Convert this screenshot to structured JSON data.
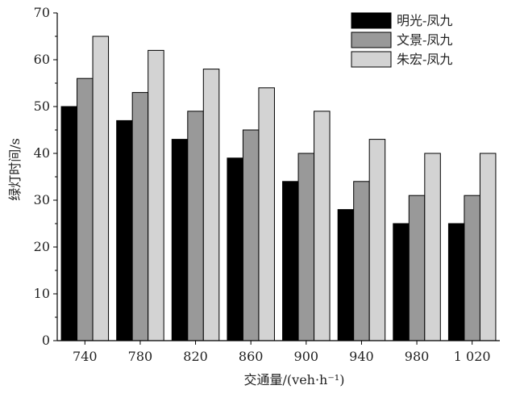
{
  "chart_data": {
    "type": "bar",
    "xlabel": "交通量/(veh·h⁻¹)",
    "ylabel": "绿灯时间/s",
    "ylim": [
      0,
      70
    ],
    "yticks": [
      0,
      10,
      20,
      30,
      40,
      50,
      60,
      70
    ],
    "categories": [
      "740",
      "780",
      "820",
      "860",
      "900",
      "940",
      "980",
      "1 020"
    ],
    "legend_position": "top-right",
    "grid": false,
    "series": [
      {
        "name": "明光-凤九",
        "color": "#000000",
        "values": [
          50,
          47,
          43,
          39,
          34,
          28,
          25,
          25
        ]
      },
      {
        "name": "文景-凤九",
        "color": "#999999",
        "values": [
          56,
          53,
          49,
          45,
          40,
          34,
          31,
          31
        ]
      },
      {
        "name": "朱宏-凤九",
        "color": "#d3d3d3",
        "values": [
          65,
          62,
          58,
          54,
          49,
          43,
          40,
          40
        ]
      }
    ]
  }
}
